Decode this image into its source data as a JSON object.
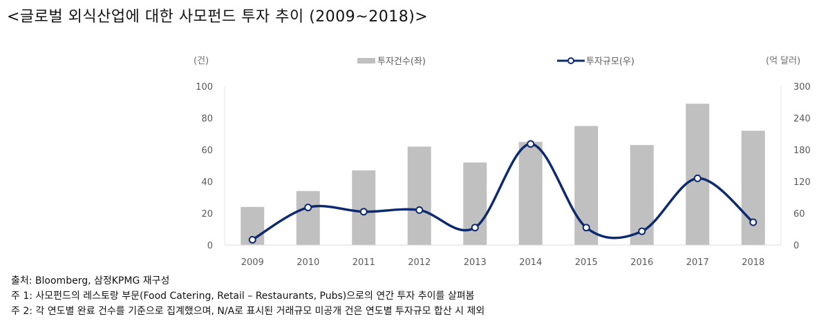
{
  "title": "<글로벌 외식산업에 대한 사모펀드 투자 추이 (2009~2018)>",
  "chart_data": {
    "type": "bar+line",
    "title": "글로벌 외식산업에 대한 사모펀드 투자 추이 (2009~2018)",
    "categories": [
      "2009",
      "2010",
      "2011",
      "2012",
      "2013",
      "2014",
      "2015",
      "2016",
      "2017",
      "2018"
    ],
    "series": [
      {
        "name": "투자건수(좌)",
        "type": "bar",
        "axis": "left",
        "color": "#c0c0c0",
        "values": [
          24,
          34,
          47,
          62,
          52,
          65,
          75,
          63,
          89,
          72
        ]
      },
      {
        "name": "투자규모(우)",
        "type": "line",
        "axis": "right",
        "color": "#0d2a6e",
        "smooth": true,
        "values": [
          10,
          71,
          63,
          66,
          33,
          191,
          33,
          26,
          126,
          43
        ]
      }
    ],
    "left_axis": {
      "label": "(건)",
      "ylim": [
        0,
        100
      ],
      "ticks": [
        "0",
        "20",
        "40",
        "60",
        "80",
        "100"
      ]
    },
    "right_axis": {
      "label": "(억 달러)",
      "ylim": [
        0,
        300
      ],
      "ticks": [
        "0",
        "60",
        "120",
        "180",
        "240",
        "300"
      ]
    },
    "xlabel": "",
    "grid": false,
    "legend_position": "top"
  },
  "legend": {
    "bar_label": "투자건수(좌)",
    "line_label": "투자규모(우)"
  },
  "axes": {
    "left_unit": "(건)",
    "right_unit": "(억 달러)"
  },
  "notes": {
    "source": "출처: Bloomberg, 삼정KPMG 재구성",
    "note1": "주 1:  사모펀드의 레스토랑 부문(Food Catering, Retail – Restaurants, Pubs)으로의 연간 투자 추이를 살펴봄",
    "note2": "주 2: 각 연도별 완료 건수를 기준으로 집계했으며, N/A로 표시된 거래규모 미공개 건은 연도별 투자규모 합산 시 제외"
  }
}
